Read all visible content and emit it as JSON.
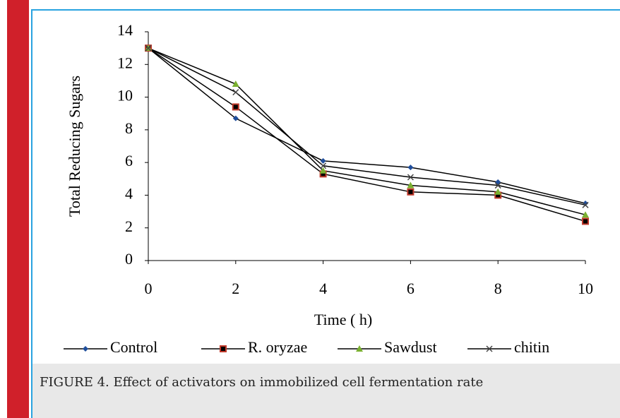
{
  "chart_data": {
    "type": "line",
    "x_label": "Time ( h)",
    "y_label": "Total Reducing Sugars",
    "x": [
      0,
      2,
      4,
      6,
      8,
      10
    ],
    "xlim": [
      0,
      10
    ],
    "xticks": [
      0,
      2,
      4,
      6,
      8,
      10
    ],
    "ylim": [
      0,
      14
    ],
    "yticks": [
      0,
      2,
      4,
      6,
      8,
      10,
      12,
      14
    ],
    "line_color": "#000000",
    "legend": "bottom",
    "series": [
      {
        "name": "Control",
        "color": "#1f4e9c",
        "marker": "diamond",
        "values": [
          13,
          8.7,
          6.1,
          5.7,
          4.8,
          3.5
        ]
      },
      {
        "name": "R. oryzae",
        "color": "#c0392b",
        "marker": "square",
        "values": [
          13,
          9.4,
          5.3,
          4.2,
          4.0,
          2.4
        ]
      },
      {
        "name": "Sawdust",
        "color": "#7ab030",
        "marker": "triangle",
        "values": [
          13,
          10.8,
          5.5,
          4.6,
          4.2,
          2.8
        ]
      },
      {
        "name": "chitin",
        "color": "#444444",
        "marker": "x",
        "values": [
          13,
          10.3,
          5.8,
          5.1,
          4.6,
          3.4
        ]
      }
    ]
  },
  "caption": "FIGURE 4. Effect of activators on immobilized cell fermentation rate"
}
